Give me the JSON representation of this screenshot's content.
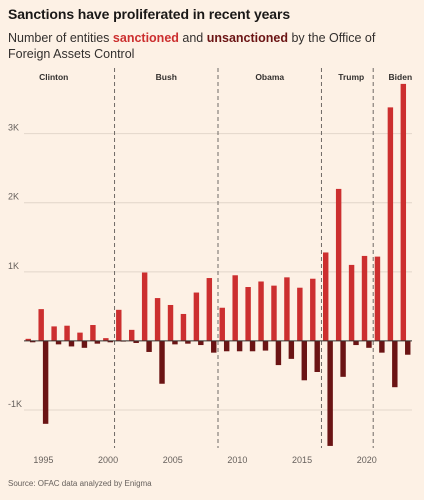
{
  "title": "Sanctions have proliferated in recent years",
  "subtitle": {
    "pre": "Number of entities ",
    "kw1": "sanctioned",
    "mid": " and ",
    "kw2": "unsanctioned",
    "post": " by the Office of Foreign Assets Control"
  },
  "source": "Source: OFAC data analyzed by Enigma",
  "colors": {
    "sanctioned": "#cc2f2f",
    "unsanctioned": "#6b1414",
    "background": "#fdf1e5",
    "grid": "#e2d6ca"
  },
  "chart_data": {
    "type": "bar",
    "x": [
      1994,
      1995,
      1996,
      1997,
      1998,
      1999,
      2000,
      2001,
      2002,
      2003,
      2004,
      2005,
      2006,
      2007,
      2008,
      2009,
      2010,
      2011,
      2012,
      2013,
      2014,
      2015,
      2016,
      2017,
      2018,
      2019,
      2020,
      2021,
      2022,
      2023
    ],
    "series": [
      {
        "name": "sanctioned",
        "values": [
          30,
          460,
          210,
          220,
          120,
          230,
          40,
          450,
          160,
          990,
          620,
          520,
          390,
          700,
          910,
          480,
          950,
          780,
          860,
          800,
          920,
          770,
          900,
          1280,
          2200,
          1100,
          1230,
          1220,
          3380,
          3720
        ]
      },
      {
        "name": "unsanctioned",
        "values": [
          -20,
          -1200,
          -50,
          -80,
          -100,
          -40,
          -20,
          -10,
          -30,
          -160,
          -620,
          -50,
          -40,
          -60,
          -170,
          -150,
          -150,
          -150,
          -140,
          -350,
          -260,
          -570,
          -450,
          -1520,
          -520,
          -60,
          -100,
          -170,
          -670,
          -200
        ]
      }
    ],
    "yticks": [
      -1000,
      1000,
      2000,
      3000
    ],
    "ytick_labels": [
      "-1K",
      "1K",
      "2K",
      "3K"
    ],
    "xticks": [
      1995,
      2000,
      2005,
      2010,
      2015,
      2020
    ],
    "ylim": [
      -1550,
      3950
    ],
    "xlim": [
      1993.5,
      2023.5
    ],
    "eras": [
      {
        "label": "Clinton",
        "x": 1995.8
      },
      {
        "label": "Bush",
        "x": 2004.5
      },
      {
        "label": "Obama",
        "x": 2012.5
      },
      {
        "label": "Trump",
        "x": 2018.8
      },
      {
        "label": "Biden",
        "x": 2022.6
      }
    ],
    "dividers": [
      2000.5,
      2008.5,
      2016.5,
      2020.5
    ],
    "grid": true
  }
}
